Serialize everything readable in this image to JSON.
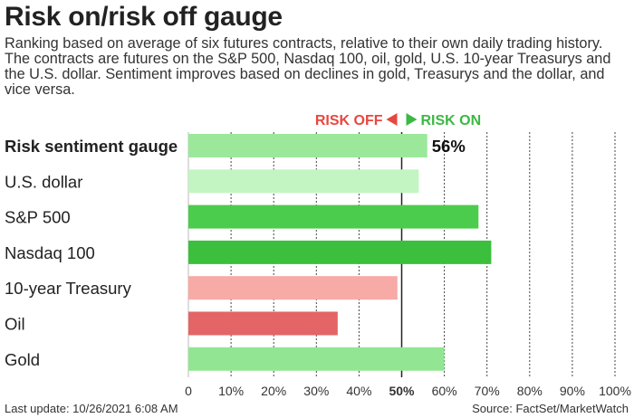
{
  "title": "Risk on/risk off gauge",
  "subtitle": "Ranking based on average of six futures contracts, relative to their own daily trading history. The contracts are futures on the S&P 500, Nasdaq 100, oil, gold, U.S. 10-year Treasurys and the U.S. dollar. Sentiment improves based on declines in gold, Treasurys and the dollar, and vice versa.",
  "footer": {
    "last_update": "Last update: 10/26/2021 6:08 AM",
    "source": "Source: FactSet/MarketWatch"
  },
  "legend": {
    "risk_off": "RISK OFF",
    "risk_on": "RISK ON",
    "risk_off_color": "#e8473f",
    "risk_on_color": "#3cb843"
  },
  "chart_data": {
    "type": "bar",
    "orientation": "horizontal",
    "categories": [
      "Risk sentiment gauge",
      "U.S. dollar",
      "S&P 500",
      "Nasdaq 100",
      "10-year Treasury",
      "Oil",
      "Gold"
    ],
    "values": [
      56,
      54,
      68,
      71,
      49,
      35,
      60
    ],
    "colors": [
      "#9be89b",
      "#c3f5c2",
      "#4ccc4c",
      "#3cbf3c",
      "#f7aaa6",
      "#e36566",
      "#92e693"
    ],
    "value_labels": [
      "56%",
      "",
      "",
      "",
      "",
      "",
      ""
    ],
    "xlim": [
      0,
      100
    ],
    "xticks": [
      "0",
      "10%",
      "20%",
      "30%",
      "40%",
      "50%",
      "60%",
      "70%",
      "80%",
      "90%",
      "100%"
    ],
    "grid": "vertical dashed",
    "midline": 50
  }
}
